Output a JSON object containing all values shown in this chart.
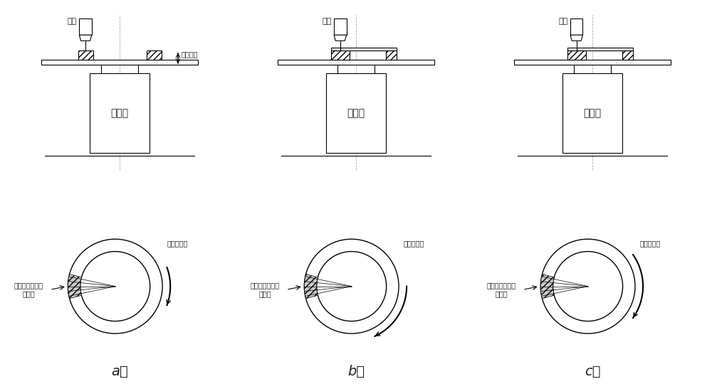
{
  "bg_color": "#ffffff",
  "line_color": "#000000",
  "gray_line": "#888888",
  "text_color": "#222222",
  "panel_labels": [
    "a）",
    "b）",
    "c）"
  ],
  "label_weiqiang": "焊枪",
  "label_bianweiji": "变位机",
  "label_cengzeng": "层高增量",
  "label_overlap": "起弧点与息弧点\n重叠量",
  "label_rotation": "变位机转向",
  "font_size_small": 8,
  "font_size_medium": 10,
  "font_size_label": 14
}
